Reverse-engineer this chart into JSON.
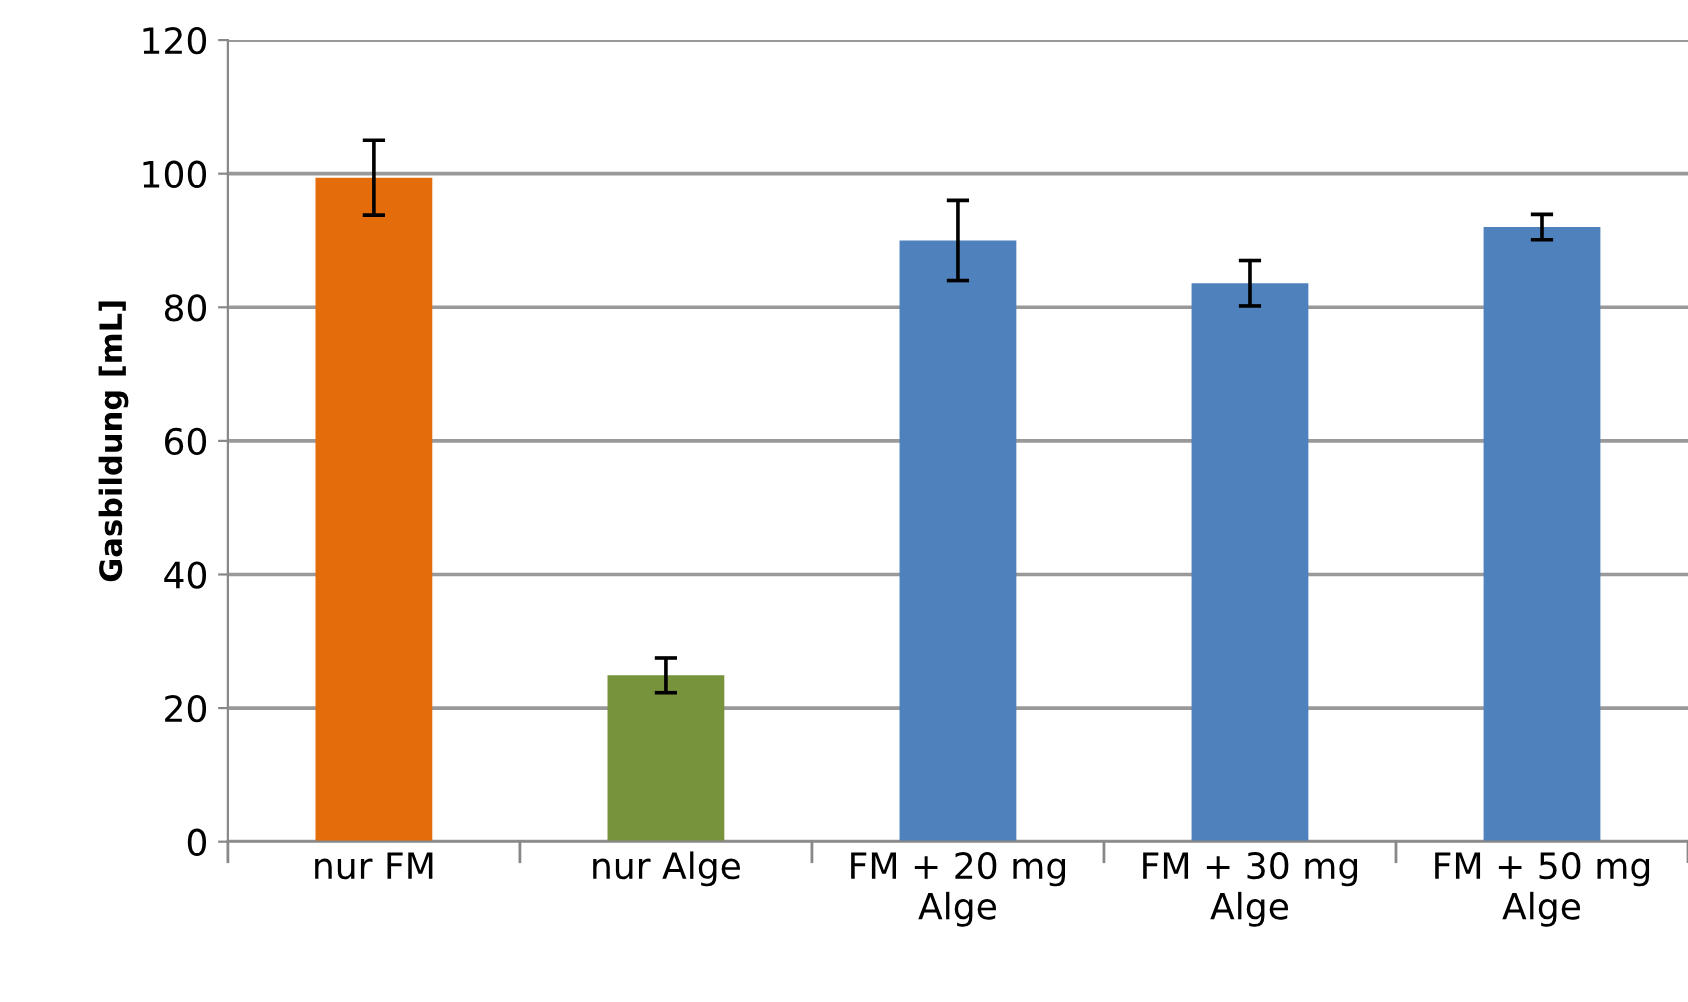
{
  "chart_data": {
    "type": "bar",
    "categories": [
      "nur FM",
      "nur Alge",
      "FM + 20 mg\nAlge",
      "FM + 30 mg\nAlge",
      "FM + 50 mg\nAlge"
    ],
    "values": [
      99.4,
      24.9,
      90,
      83.6,
      92
    ],
    "colors": [
      "#e46c0a",
      "#77933c",
      "#4f81bd",
      "#4f81bd",
      "#4f81bd"
    ],
    "errors": [
      5.6,
      2.6,
      6,
      3.4,
      1.9
    ],
    "ylabel": "Gasbildung [mL]",
    "ylim": [
      0,
      120
    ],
    "yticks": [
      0,
      20,
      40,
      60,
      80,
      100,
      120
    ],
    "grid": "y",
    "legend": false
  }
}
